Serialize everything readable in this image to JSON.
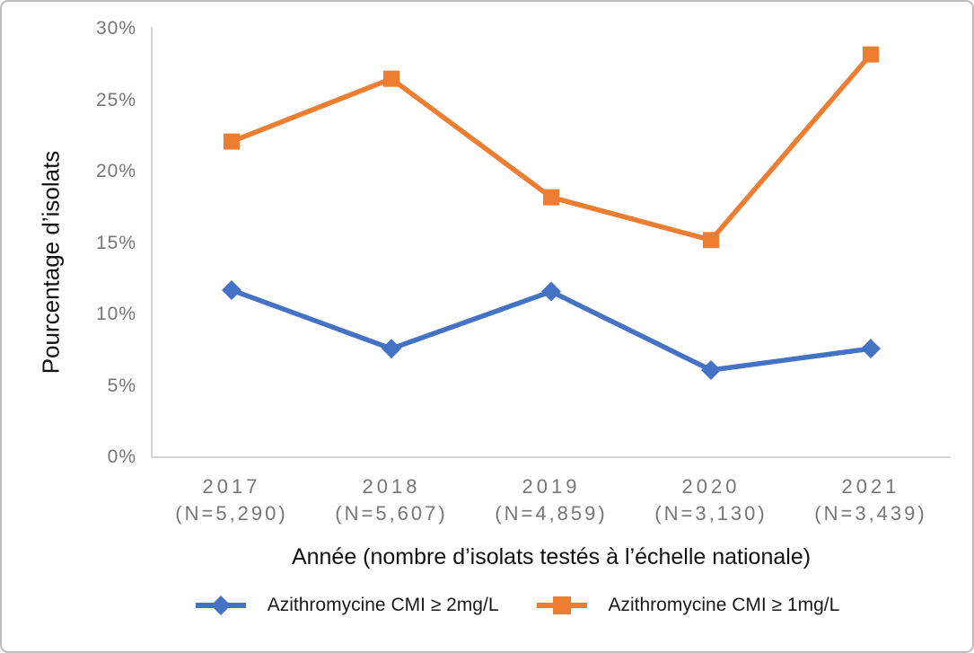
{
  "frame": {
    "border_color": "#bdbdbd",
    "background": "#ffffff"
  },
  "chart_data": {
    "type": "line",
    "ylabel": "Pourcentage d’isolats",
    "xlabel": "Année (nombre d’isolats testés à l’échelle nationale)",
    "ylim": [
      0,
      30
    ],
    "grid": false,
    "legend_position": "bottom",
    "axis_color": "#d5d3d3",
    "tick_label_color": "#767676",
    "y_ticks": [
      {
        "label": "0%",
        "value": 0
      },
      {
        "label": "5%",
        "value": 5
      },
      {
        "label": "10%",
        "value": 10
      },
      {
        "label": "15%",
        "value": 15
      },
      {
        "label": "20%",
        "value": 20
      },
      {
        "label": "25%",
        "value": 25
      },
      {
        "label": "30%",
        "value": 30
      }
    ],
    "categories": [
      {
        "year": "2017",
        "n_label": "(N=5,290)"
      },
      {
        "year": "2018",
        "n_label": "(N=5,607)"
      },
      {
        "year": "2019",
        "n_label": "(N=4,859)"
      },
      {
        "year": "2020",
        "n_label": "(N=3,130)"
      },
      {
        "year": "2021",
        "n_label": "(N=3,439)"
      }
    ],
    "series": [
      {
        "name": "Azithromycine CMI ≥ 2mg/L",
        "marker": "diamond",
        "color": "#4472C4",
        "values": [
          11.7,
          7.6,
          11.6,
          6.1,
          7.6
        ]
      },
      {
        "name": "Azithromycine CMI ≥ 1mg/L",
        "marker": "square",
        "color": "#ED7D31",
        "values": [
          22.1,
          26.5,
          18.2,
          15.2,
          28.2
        ]
      }
    ]
  }
}
